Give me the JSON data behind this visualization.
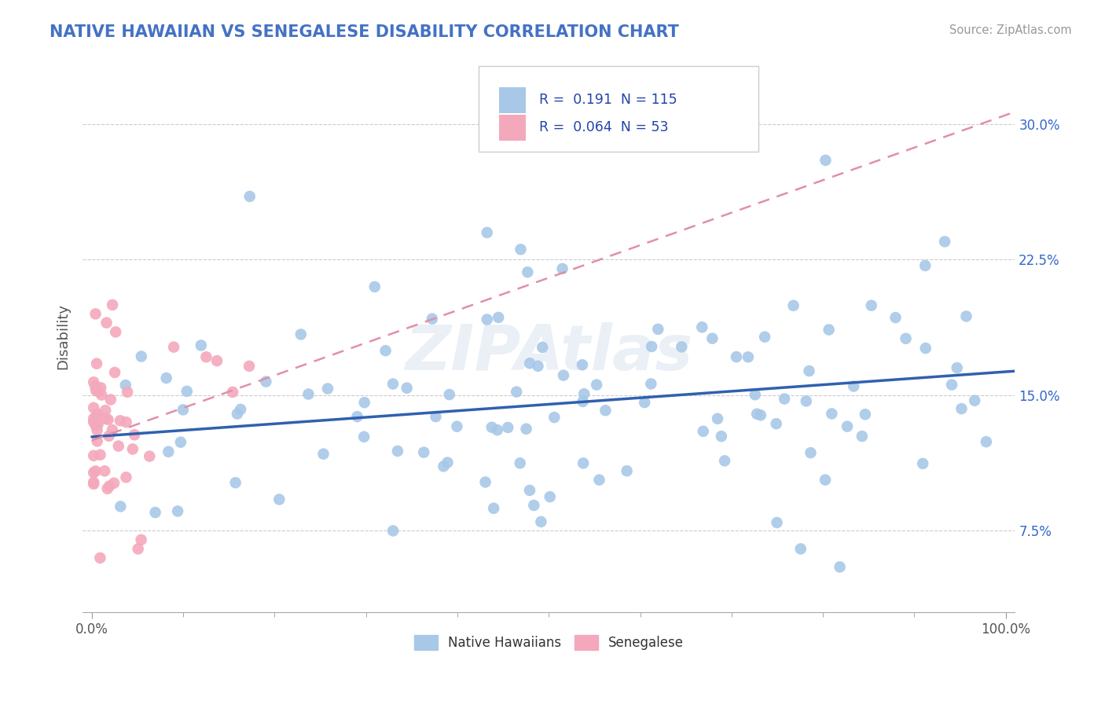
{
  "title": "NATIVE HAWAIIAN VS SENEGALESE DISABILITY CORRELATION CHART",
  "source": "Source: ZipAtlas.com",
  "ylabel": "Disability",
  "ytick_values": [
    0.075,
    0.15,
    0.225,
    0.3
  ],
  "ytick_labels": [
    "7.5%",
    "15.0%",
    "22.5%",
    "30.0%"
  ],
  "xlim": [
    -0.01,
    1.01
  ],
  "ylim": [
    0.03,
    0.335
  ],
  "R_blue": 0.191,
  "N_blue": 115,
  "R_pink": 0.064,
  "N_pink": 53,
  "blue_color": "#a8c8e8",
  "pink_color": "#f4a8bc",
  "blue_line_color": "#3060b0",
  "pink_line_color": "#e090a8",
  "legend_label_blue": "Native Hawaiians",
  "legend_label_pink": "Senegalese",
  "watermark": "ZIPAtlas",
  "background_color": "#ffffff",
  "title_color": "#4472c4",
  "source_color": "#999999",
  "grid_color": "#cccccc"
}
